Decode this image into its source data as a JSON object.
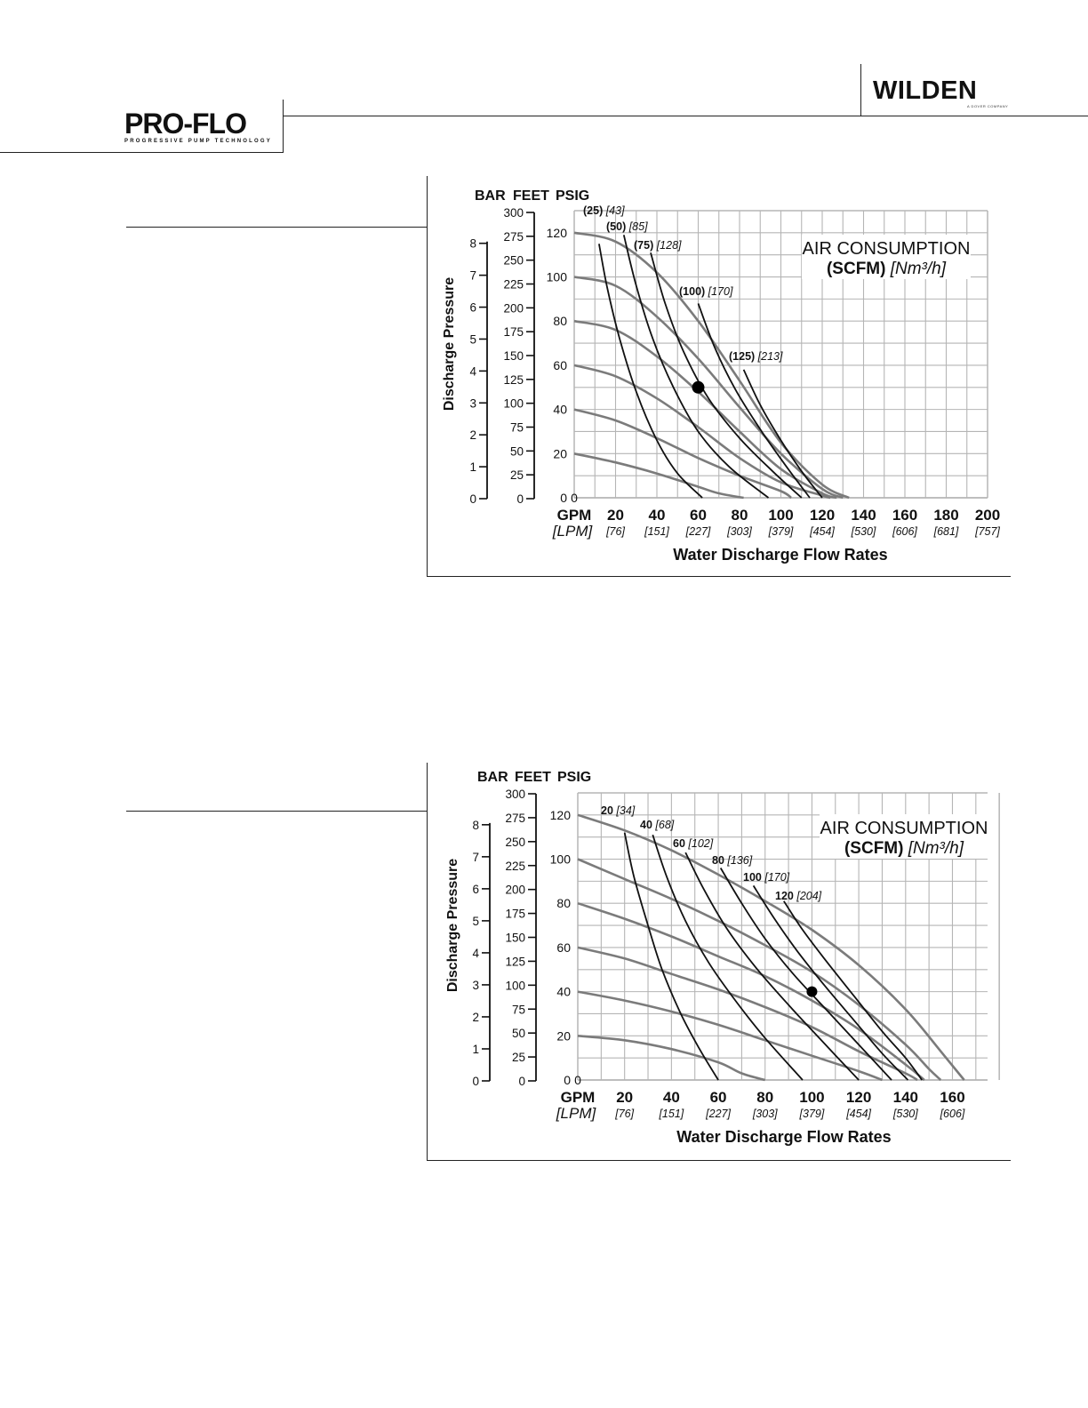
{
  "header": {
    "left_logo": "PRO-FLO",
    "left_logo_tagline": "PROGRESSIVE PUMP TECHNOLOGY",
    "right_logo": "WILDEN",
    "right_logo_tagline": "A DOVER COMPANY"
  },
  "chart_data": [
    {
      "type": "line",
      "title": "AIR CONSUMPTION",
      "subtitle_bold": "(SCFM)",
      "subtitle_italic": "[Nm³/h]",
      "xlabel": "Water Discharge Flow Rates",
      "x_unit_primary": "GPM",
      "x_unit_secondary": "[LPM]",
      "y_axis_title": "Discharge Pressure",
      "y_unit_labels": [
        "BAR",
        "FEET",
        "PSIG"
      ],
      "xlim": [
        0,
        200
      ],
      "ylim": [
        0,
        130
      ],
      "x_ticks": [
        "20",
        "40",
        "60",
        "80",
        "100",
        "120",
        "140",
        "160",
        "180",
        "200"
      ],
      "x_ticks_lpm": [
        "[76]",
        "[151]",
        "[227]",
        "[303]",
        "[379]",
        "[454]",
        "[530]",
        "[606]",
        "[681]",
        "[757]"
      ],
      "psig_ticks": [
        "120",
        "100",
        "80",
        "60",
        "40",
        "20",
        "0"
      ],
      "feet_ticks": [
        "300",
        "275",
        "250",
        "225",
        "200",
        "175",
        "150",
        "125",
        "100",
        "75",
        "50",
        "25",
        "0"
      ],
      "bar_ticks": [
        "8",
        "7",
        "6",
        "5",
        "4",
        "3",
        "2",
        "1",
        "0"
      ],
      "grid": true,
      "performance_curves": [
        {
          "x": [
            0,
            20,
            40,
            60,
            80,
            100,
            120,
            133
          ],
          "y": [
            120,
            116,
            102,
            80,
            53,
            25,
            6,
            0
          ]
        },
        {
          "x": [
            0,
            20,
            40,
            60,
            80,
            100,
            120,
            130
          ],
          "y": [
            100,
            96,
            82,
            63,
            41,
            20,
            4,
            0
          ]
        },
        {
          "x": [
            0,
            20,
            40,
            60,
            80,
            100,
            120,
            127
          ],
          "y": [
            80,
            76,
            64,
            48,
            30,
            13,
            2,
            0
          ]
        },
        {
          "x": [
            0,
            20,
            40,
            60,
            80,
            100,
            120,
            124
          ],
          "y": [
            60,
            55,
            45,
            32,
            18,
            7,
            1,
            0
          ]
        },
        {
          "x": [
            0,
            20,
            40,
            60,
            80,
            100,
            105
          ],
          "y": [
            40,
            35,
            27,
            18,
            10,
            3,
            0
          ]
        },
        {
          "x": [
            0,
            20,
            40,
            60,
            70,
            82
          ],
          "y": [
            20,
            16,
            11,
            5,
            2,
            0
          ]
        }
      ],
      "air_series": [
        {
          "name_bold": "(25)",
          "name_italic": "[43]",
          "x": [
            12,
            16,
            22,
            30,
            40,
            50,
            62
          ],
          "y": [
            115,
            95,
            72,
            48,
            26,
            11,
            0
          ]
        },
        {
          "name_bold": "(50)",
          "name_italic": "[85]",
          "x": [
            24,
            30,
            38,
            48,
            60,
            75,
            94
          ],
          "y": [
            119,
            96,
            72,
            50,
            30,
            14,
            0
          ]
        },
        {
          "name_bold": "(75)",
          "name_italic": "[128]",
          "x": [
            37,
            44,
            53,
            65,
            80,
            96,
            110
          ],
          "y": [
            111,
            88,
            66,
            45,
            27,
            12,
            0
          ]
        },
        {
          "name_bold": "(100)",
          "name_italic": "[170]",
          "x": [
            60,
            68,
            78,
            90,
            102,
            114
          ],
          "y": [
            88,
            68,
            49,
            31,
            15,
            0
          ]
        },
        {
          "name_bold": "(125)",
          "name_italic": "[213]",
          "x": [
            82,
            90,
            100,
            110,
            120
          ],
          "y": [
            58,
            42,
            26,
            12,
            0
          ]
        }
      ],
      "operating_point": {
        "x": 60,
        "y": 50
      }
    },
    {
      "type": "line",
      "title": "AIR CONSUMPTION",
      "subtitle_bold": "(SCFM)",
      "subtitle_italic": "[Nm³/h]",
      "xlabel": "Water Discharge Flow Rates",
      "x_unit_primary": "GPM",
      "x_unit_secondary": "[LPM]",
      "y_axis_title": "Discharge Pressure",
      "y_unit_labels": [
        "BAR",
        "FEET",
        "PSIG"
      ],
      "xlim": [
        0,
        175
      ],
      "ylim": [
        0,
        130
      ],
      "x_ticks": [
        "20",
        "40",
        "60",
        "80",
        "100",
        "120",
        "140",
        "160"
      ],
      "x_ticks_lpm": [
        "[76]",
        "[151]",
        "[227]",
        "[303]",
        "[379]",
        "[454]",
        "[530]",
        "[606]"
      ],
      "psig_ticks": [
        "120",
        "100",
        "80",
        "60",
        "40",
        "20",
        "0"
      ],
      "feet_ticks": [
        "300",
        "275",
        "250",
        "225",
        "200",
        "175",
        "150",
        "125",
        "100",
        "75",
        "50",
        "25",
        "0"
      ],
      "bar_ticks": [
        "8",
        "7",
        "6",
        "5",
        "4",
        "3",
        "2",
        "1",
        "0"
      ],
      "grid": true,
      "performance_curves": [
        {
          "x": [
            0,
            20,
            40,
            60,
            80,
            100,
            120,
            140,
            155,
            165
          ],
          "y": [
            120,
            113,
            104,
            93,
            81,
            68,
            52,
            32,
            13,
            0
          ]
        },
        {
          "x": [
            0,
            20,
            40,
            60,
            80,
            100,
            120,
            140,
            150,
            155
          ],
          "y": [
            100,
            91,
            82,
            72,
            61,
            49,
            34,
            16,
            5,
            0
          ]
        },
        {
          "x": [
            0,
            20,
            40,
            60,
            80,
            100,
            120,
            140,
            148
          ],
          "y": [
            80,
            73,
            65,
            56,
            47,
            36,
            23,
            7,
            0
          ]
        },
        {
          "x": [
            0,
            20,
            40,
            60,
            80,
            100,
            120,
            140,
            145
          ],
          "y": [
            60,
            55,
            48,
            41,
            33,
            24,
            13,
            3,
            0
          ]
        },
        {
          "x": [
            0,
            20,
            40,
            60,
            80,
            100,
            120,
            130
          ],
          "y": [
            40,
            36,
            31,
            25,
            18,
            11,
            4,
            0
          ]
        },
        {
          "x": [
            0,
            20,
            40,
            60,
            70,
            80
          ],
          "y": [
            20,
            18,
            14,
            8,
            3,
            0
          ]
        }
      ],
      "air_series": [
        {
          "name_bold": "20",
          "name_italic": "[34]",
          "x": [
            20,
            24,
            30,
            36,
            44,
            52,
            60
          ],
          "y": [
            112,
            92,
            70,
            50,
            30,
            14,
            0
          ]
        },
        {
          "name_bold": "40",
          "name_italic": "[68]",
          "x": [
            32,
            38,
            46,
            56,
            68,
            80,
            96
          ],
          "y": [
            111,
            92,
            72,
            53,
            35,
            19,
            0
          ]
        },
        {
          "name_bold": "60",
          "name_italic": "[102]",
          "x": [
            46,
            54,
            64,
            76,
            90,
            104,
            120
          ],
          "y": [
            103,
            86,
            68,
            51,
            34,
            18,
            0
          ]
        },
        {
          "name_bold": "80",
          "name_italic": "[136]",
          "x": [
            61,
            70,
            80,
            92,
            106,
            120,
            134
          ],
          "y": [
            96,
            80,
            64,
            48,
            32,
            16,
            0
          ]
        },
        {
          "name_bold": "100",
          "name_italic": "[170]",
          "x": [
            75,
            84,
            94,
            106,
            118,
            130,
            141
          ],
          "y": [
            88,
            73,
            58,
            42,
            27,
            12,
            0
          ]
        },
        {
          "name_bold": "120",
          "name_italic": "[204]",
          "x": [
            88,
            96,
            106,
            118,
            130,
            140,
            147
          ],
          "y": [
            81,
            68,
            54,
            38,
            22,
            10,
            0
          ]
        }
      ],
      "operating_point": {
        "x": 100,
        "y": 40
      }
    }
  ]
}
